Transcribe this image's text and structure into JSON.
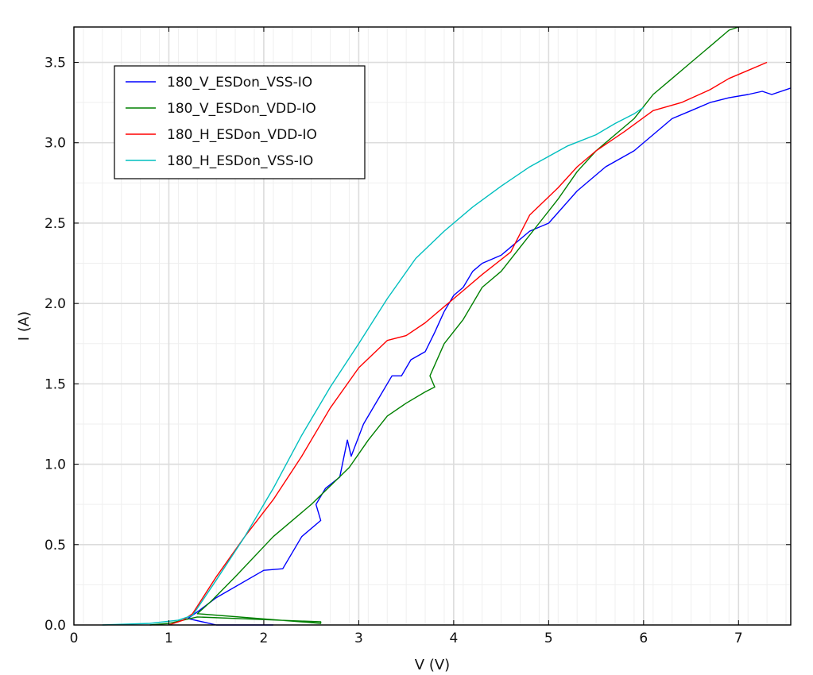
{
  "chart_data": {
    "type": "line",
    "title": "",
    "xlabel": "V (V)",
    "ylabel": "I (A)",
    "xlim": [
      0,
      7.55
    ],
    "ylim": [
      0,
      3.72
    ],
    "x_ticks": [
      0,
      1,
      2,
      3,
      4,
      5,
      6,
      7
    ],
    "y_ticks": [
      0.0,
      0.5,
      1.0,
      1.5,
      2.0,
      2.5,
      3.0,
      3.5
    ],
    "x_tick_labels": [
      "0",
      "1",
      "2",
      "3",
      "4",
      "5",
      "6",
      "7"
    ],
    "y_tick_labels": [
      "0.0",
      "0.5",
      "1.0",
      "1.5",
      "2.0",
      "2.5",
      "3.0",
      "3.5"
    ],
    "grid": true,
    "minor_grid": true,
    "legend_position": "upper-left",
    "series": [
      {
        "name": "180_V_ESDon_VSS-IO",
        "color": "#0000ff",
        "x": [
          2.1,
          1.5,
          1.2,
          1.32,
          1.5,
          2.0,
          2.2,
          2.4,
          2.6,
          2.55,
          2.65,
          2.8,
          2.88,
          2.92,
          3.05,
          3.2,
          3.35,
          3.45,
          3.55,
          3.7,
          3.8,
          3.9,
          4.0,
          4.1,
          4.2,
          4.3,
          4.5,
          4.8,
          5.0,
          5.3,
          5.6,
          5.9,
          6.1,
          6.3,
          6.5,
          6.7,
          6.9,
          7.1,
          7.25,
          7.35,
          7.55
        ],
        "y": [
          0.0,
          0.0,
          0.04,
          0.09,
          0.17,
          0.34,
          0.35,
          0.55,
          0.65,
          0.75,
          0.85,
          0.92,
          1.15,
          1.05,
          1.25,
          1.4,
          1.55,
          1.55,
          1.65,
          1.7,
          1.82,
          1.95,
          2.05,
          2.1,
          2.2,
          2.25,
          2.3,
          2.45,
          2.5,
          2.7,
          2.85,
          2.95,
          3.05,
          3.15,
          3.2,
          3.25,
          3.28,
          3.3,
          3.32,
          3.3,
          3.34
        ]
      },
      {
        "name": "180_V_ESDon_VDD-IO",
        "color": "#008000",
        "x": [
          0.8,
          1.0,
          1.15,
          1.3,
          2.6,
          2.6,
          1.3,
          1.45,
          1.7,
          2.1,
          2.5,
          2.9,
          3.1,
          3.3,
          3.5,
          3.7,
          3.8,
          3.75,
          3.9,
          4.1,
          4.3,
          4.5,
          4.7,
          4.9,
          5.1,
          5.3,
          5.5,
          5.7,
          5.9,
          6.1,
          6.3,
          6.5,
          6.7,
          6.9,
          7.0
        ],
        "y": [
          0.0,
          0.01,
          0.03,
          0.05,
          0.02,
          0.01,
          0.07,
          0.15,
          0.3,
          0.55,
          0.75,
          0.98,
          1.15,
          1.3,
          1.38,
          1.45,
          1.48,
          1.55,
          1.75,
          1.9,
          2.1,
          2.2,
          2.35,
          2.5,
          2.65,
          2.82,
          2.95,
          3.05,
          3.15,
          3.3,
          3.4,
          3.5,
          3.6,
          3.7,
          3.72
        ]
      },
      {
        "name": "180_H_ESDon_VDD-IO",
        "color": "#ff0000",
        "x": [
          1.0,
          1.15,
          1.25,
          1.5,
          1.8,
          2.1,
          2.4,
          2.7,
          3.0,
          3.3,
          3.5,
          3.7,
          3.9,
          4.1,
          4.3,
          4.6,
          4.8,
          5.1,
          5.3,
          5.5,
          5.8,
          6.1,
          6.4,
          6.7,
          6.9,
          7.1,
          7.3
        ],
        "y": [
          0.0,
          0.03,
          0.07,
          0.3,
          0.55,
          0.78,
          1.05,
          1.35,
          1.6,
          1.77,
          1.8,
          1.88,
          1.98,
          2.08,
          2.18,
          2.32,
          2.55,
          2.72,
          2.85,
          2.95,
          3.07,
          3.2,
          3.25,
          3.33,
          3.4,
          3.45,
          3.5
        ]
      },
      {
        "name": "180_H_ESDon_VSS-IO",
        "color": "#00bfbf",
        "x": [
          0.3,
          0.8,
          1.1,
          1.25,
          1.5,
          1.8,
          2.1,
          2.4,
          2.7,
          3.0,
          3.3,
          3.6,
          3.9,
          4.2,
          4.5,
          4.8,
          5.2,
          5.5,
          5.7,
          5.9,
          6.0
        ],
        "y": [
          0.0,
          0.01,
          0.03,
          0.06,
          0.28,
          0.55,
          0.85,
          1.18,
          1.48,
          1.75,
          2.03,
          2.28,
          2.45,
          2.6,
          2.73,
          2.85,
          2.98,
          3.05,
          3.12,
          3.18,
          3.22
        ]
      }
    ]
  }
}
